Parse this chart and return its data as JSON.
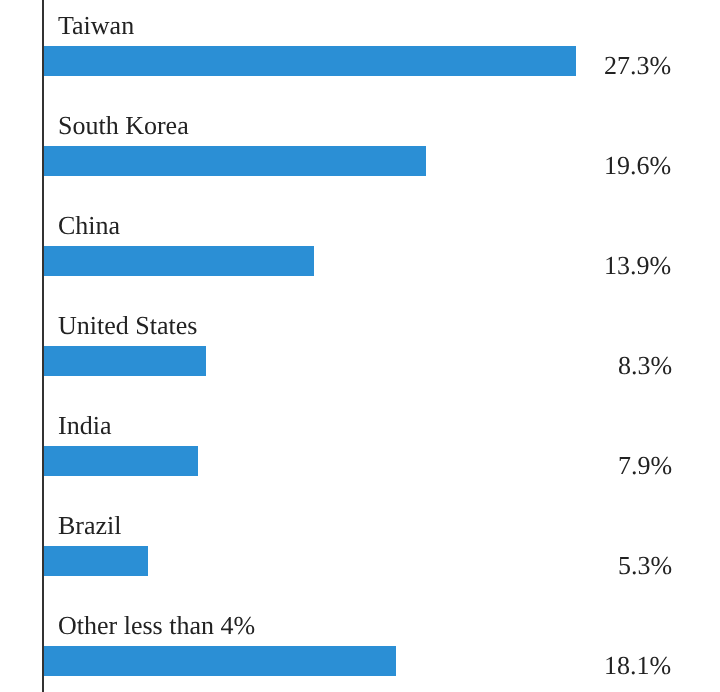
{
  "chart_data": {
    "type": "bar",
    "orientation": "horizontal",
    "categories": [
      "Taiwan",
      "South Korea",
      "China",
      "United States",
      "India",
      "Brazil",
      "Other less than 4%"
    ],
    "values": [
      27.3,
      19.6,
      13.9,
      8.3,
      7.9,
      5.3,
      18.1
    ],
    "value_labels": [
      "27.3%",
      "19.6%",
      "13.9%",
      "8.3%",
      "7.9%",
      "5.3%",
      "18.1%"
    ],
    "color": "#2b8fd5"
  }
}
